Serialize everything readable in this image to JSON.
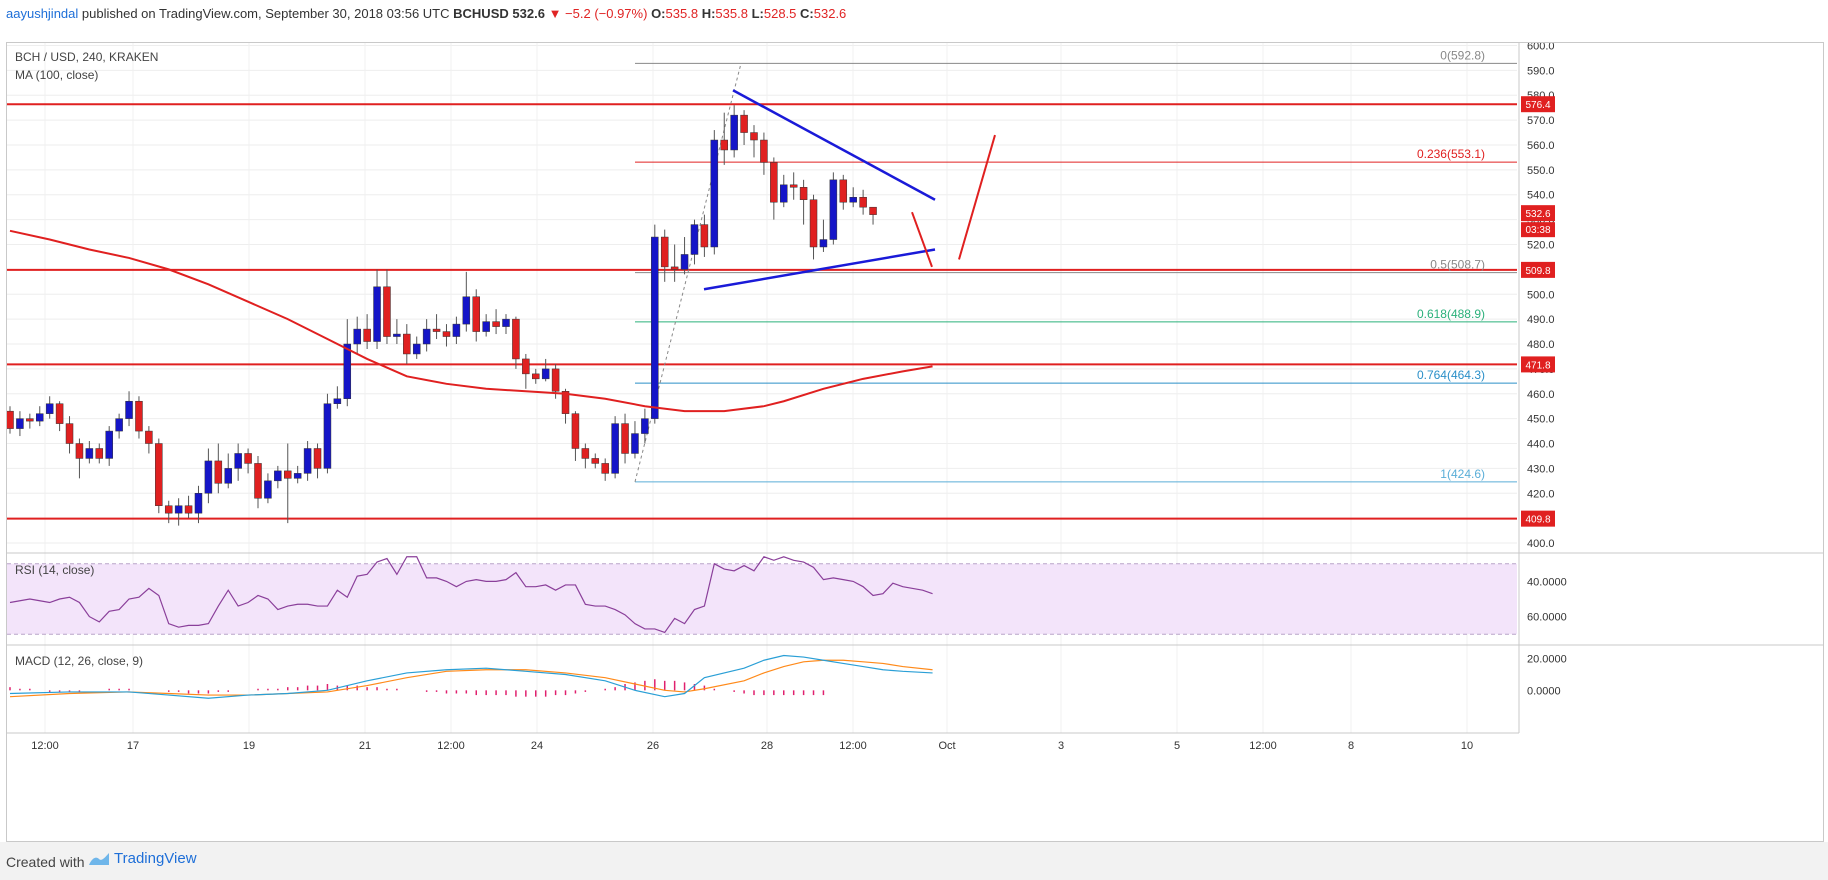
{
  "header": {
    "author": "aayushjindal",
    "published_text": "published on TradingView.com, September 30, 2018 03:56 UTC",
    "symbol": "BCHUSD",
    "last": "532.6",
    "change": "▼ −5.2 (−0.97%)",
    "open_label": "O:",
    "open": "535.8",
    "high_label": "H:",
    "high": "535.8",
    "low_label": "L:",
    "low": "528.5",
    "close_label": "C:",
    "close": "532.6"
  },
  "footer": {
    "created_with": "Created with",
    "brand": "TradingView"
  },
  "colors": {
    "up": "#1515c8",
    "down": "#e02020",
    "ma": "#e02020",
    "rsi": "#8a3f9a",
    "macd": "#2a9fd6",
    "signal": "#ff8a1a",
    "hist": "#e0206e",
    "level": "#e02020",
    "trend": "#1a1ad8"
  },
  "chart_data": {
    "type": "candlestick",
    "title": "BCH / USD, 240, KRAKEN",
    "indicator_label": "MA (100, close)",
    "ylim": [
      398,
      601
    ],
    "yticks": [
      "400.0",
      "410.0",
      "420.0",
      "430.0",
      "440.0",
      "450.0",
      "460.0",
      "470.0",
      "480.0",
      "490.0",
      "500.0",
      "510.0",
      "520.0",
      "530.0",
      "540.0",
      "550.0",
      "560.0",
      "570.0",
      "580.0",
      "590.0",
      "600.0"
    ],
    "xticks": [
      "12:00",
      "17",
      "12:00",
      "19",
      "21",
      "12:00",
      "24",
      "26",
      "28",
      "12:00",
      "Oct",
      "3",
      "5",
      "12:00",
      "8",
      "10"
    ],
    "last_price_label": "532.6",
    "countdown_label": "03:38",
    "candles": [
      [
        453,
        446,
        455,
        444
      ],
      [
        446,
        450,
        453,
        443
      ],
      [
        450,
        449,
        452,
        446
      ],
      [
        449,
        452,
        455,
        447
      ],
      [
        452,
        456,
        459,
        450
      ],
      [
        456,
        448,
        457,
        445
      ],
      [
        448,
        440,
        451,
        436
      ],
      [
        440,
        434,
        442,
        426
      ],
      [
        434,
        438,
        441,
        432
      ],
      [
        438,
        434,
        440,
        432
      ],
      [
        434,
        445,
        447,
        431
      ],
      [
        445,
        450,
        452,
        442
      ],
      [
        450,
        457,
        461,
        447
      ],
      [
        457,
        445,
        459,
        442
      ],
      [
        445,
        440,
        447,
        436
      ],
      [
        440,
        415,
        442,
        412
      ],
      [
        415,
        412,
        417,
        408
      ],
      [
        412,
        415,
        418,
        407
      ],
      [
        415,
        412,
        419,
        410
      ],
      [
        412,
        420,
        423,
        408
      ],
      [
        420,
        433,
        438,
        416
      ],
      [
        433,
        424,
        440,
        420
      ],
      [
        424,
        430,
        436,
        422
      ],
      [
        430,
        436,
        440,
        425
      ],
      [
        436,
        432,
        438,
        428
      ],
      [
        432,
        418,
        435,
        414
      ],
      [
        418,
        425,
        428,
        416
      ],
      [
        425,
        429,
        431,
        422
      ],
      [
        429,
        426,
        440,
        408
      ],
      [
        426,
        428,
        431,
        424
      ],
      [
        428,
        438,
        441,
        425
      ],
      [
        438,
        430,
        440,
        426
      ],
      [
        430,
        456,
        460,
        428
      ],
      [
        456,
        458,
        463,
        454
      ],
      [
        458,
        480,
        490,
        455
      ],
      [
        480,
        486,
        491,
        476
      ],
      [
        486,
        481,
        492,
        478
      ],
      [
        481,
        503,
        510,
        478
      ],
      [
        503,
        483,
        510,
        480
      ],
      [
        483,
        484,
        490,
        480
      ],
      [
        484,
        476,
        488,
        472
      ],
      [
        476,
        480,
        483,
        474
      ],
      [
        480,
        486,
        490,
        477
      ],
      [
        486,
        485,
        492,
        482
      ],
      [
        485,
        483,
        488,
        479
      ],
      [
        483,
        488,
        491,
        480
      ],
      [
        488,
        499,
        509,
        485
      ],
      [
        499,
        485,
        502,
        481
      ],
      [
        485,
        489,
        492,
        483
      ],
      [
        489,
        487,
        494,
        484
      ],
      [
        487,
        490,
        492,
        484
      ],
      [
        490,
        474,
        491,
        470
      ],
      [
        474,
        468,
        476,
        462
      ],
      [
        468,
        466,
        470,
        464
      ],
      [
        466,
        470,
        474,
        465
      ],
      [
        470,
        461,
        472,
        458
      ],
      [
        461,
        452,
        462,
        448
      ],
      [
        452,
        438,
        453,
        433
      ],
      [
        438,
        434,
        440,
        430
      ],
      [
        434,
        432,
        436,
        430
      ],
      [
        432,
        428,
        434,
        425
      ],
      [
        428,
        448,
        451,
        426
      ],
      [
        448,
        436,
        452,
        432
      ],
      [
        436,
        444,
        449,
        434
      ],
      [
        444,
        450,
        454,
        440
      ],
      [
        450,
        523,
        528,
        448
      ],
      [
        523,
        511,
        526,
        505
      ],
      [
        511,
        510,
        520,
        505
      ],
      [
        510,
        516,
        523,
        508
      ],
      [
        516,
        528,
        530,
        512
      ],
      [
        528,
        519,
        532,
        515
      ],
      [
        519,
        562,
        566,
        516
      ],
      [
        562,
        558,
        573,
        552
      ],
      [
        558,
        572,
        576,
        555
      ],
      [
        572,
        565,
        574,
        560
      ],
      [
        565,
        562,
        568,
        555
      ],
      [
        562,
        553,
        565,
        548
      ],
      [
        553,
        537,
        555,
        530
      ],
      [
        537,
        544,
        548,
        535
      ],
      [
        544,
        543,
        549,
        538
      ],
      [
        543,
        538,
        546,
        528
      ],
      [
        538,
        519,
        540,
        514
      ],
      [
        519,
        522,
        530,
        517
      ],
      [
        522,
        546,
        549,
        520
      ],
      [
        546,
        537,
        548,
        534
      ],
      [
        537,
        539,
        543,
        535
      ],
      [
        539,
        535,
        542,
        532
      ],
      [
        535,
        532,
        535,
        528
      ]
    ],
    "ma100": [
      [
        0,
        525.5
      ],
      [
        4,
        522
      ],
      [
        8,
        518
      ],
      [
        12,
        514.6
      ],
      [
        16,
        510
      ],
      [
        20,
        504
      ],
      [
        24,
        497
      ],
      [
        28,
        490
      ],
      [
        32,
        482
      ],
      [
        36,
        474
      ],
      [
        40,
        467
      ],
      [
        44,
        464
      ],
      [
        48,
        462
      ],
      [
        52,
        461
      ],
      [
        56,
        460
      ],
      [
        60,
        458
      ],
      [
        64,
        455
      ],
      [
        68,
        453
      ],
      [
        72,
        453
      ],
      [
        76,
        455
      ],
      [
        78,
        457
      ],
      [
        82,
        462
      ],
      [
        86,
        466
      ],
      [
        90,
        469
      ],
      [
        93,
        471
      ]
    ],
    "levels": [
      {
        "name": "resistance",
        "value": 576.4,
        "label": "576.4"
      },
      {
        "name": "support-upper",
        "value": 509.8,
        "label": "509.8"
      },
      {
        "name": "support-mid",
        "value": 471.8,
        "label": "471.8"
      },
      {
        "name": "support-lower",
        "value": 409.8,
        "label": "409.8"
      }
    ],
    "fib": [
      {
        "ratio": "0",
        "value": 592.8,
        "label": "0(592.8)",
        "color": "#888888"
      },
      {
        "ratio": "0.236",
        "value": 553.1,
        "label": "0.236(553.1)",
        "color": "#e02020"
      },
      {
        "ratio": "0.5",
        "value": 508.7,
        "label": "0.5(508.7)",
        "color": "#888888"
      },
      {
        "ratio": "0.618",
        "value": 488.9,
        "label": "0.618(488.9)",
        "color": "#2ab07a"
      },
      {
        "ratio": "0.764",
        "value": 464.3,
        "label": "0.764(464.3)",
        "color": "#2a8fc8"
      },
      {
        "ratio": "1",
        "value": 424.6,
        "label": "1(424.6)",
        "color": "#5aaed8"
      }
    ],
    "rsi": {
      "label": "RSI (14, close)",
      "ticks": [
        "40.0000",
        "60.0000"
      ],
      "values": [
        48,
        49,
        50,
        49,
        48,
        50,
        51,
        48,
        40,
        37,
        43,
        44,
        50,
        51,
        56,
        52,
        36,
        34,
        35,
        35,
        36,
        46,
        55,
        46,
        48,
        52,
        50,
        44,
        46,
        47,
        47,
        46,
        46,
        55,
        51,
        63,
        64,
        71,
        73,
        64,
        74,
        74,
        62,
        62,
        60,
        57,
        60,
        61,
        60,
        60,
        61,
        65,
        57,
        57,
        58,
        55,
        58,
        58,
        47,
        46,
        46,
        44,
        41,
        36,
        33,
        33,
        31,
        39,
        36,
        44,
        46,
        70,
        67,
        66,
        69,
        66,
        74,
        72,
        74,
        72,
        71,
        68,
        61,
        62,
        61,
        60,
        57,
        52,
        53,
        59,
        57,
        56,
        55,
        53
      ]
    },
    "macd": {
      "label": "MACD (12, 26, close, 9)",
      "ticks": [
        "20.0000",
        "0.0000"
      ],
      "macd": [
        [
          0,
          -2
        ],
        [
          6,
          -1
        ],
        [
          12,
          -1
        ],
        [
          16,
          -3
        ],
        [
          20,
          -5
        ],
        [
          24,
          -3
        ],
        [
          28,
          -2
        ],
        [
          32,
          0
        ],
        [
          36,
          6
        ],
        [
          40,
          11
        ],
        [
          44,
          13
        ],
        [
          48,
          14
        ],
        [
          52,
          12
        ],
        [
          56,
          10
        ],
        [
          60,
          6
        ],
        [
          63,
          0
        ],
        [
          66,
          -4
        ],
        [
          68,
          -2
        ],
        [
          70,
          8
        ],
        [
          74,
          14
        ],
        [
          76,
          19
        ],
        [
          78,
          22
        ],
        [
          80,
          21
        ],
        [
          82,
          19
        ],
        [
          84,
          17
        ],
        [
          86,
          15
        ],
        [
          88,
          13
        ],
        [
          90,
          12
        ],
        [
          93,
          11
        ]
      ],
      "signal": [
        [
          0,
          -4
        ],
        [
          6,
          -2
        ],
        [
          12,
          -1
        ],
        [
          16,
          -2
        ],
        [
          20,
          -3
        ],
        [
          24,
          -3
        ],
        [
          28,
          -2
        ],
        [
          32,
          -1
        ],
        [
          36,
          3
        ],
        [
          40,
          8
        ],
        [
          44,
          12
        ],
        [
          48,
          13
        ],
        [
          52,
          13
        ],
        [
          56,
          11
        ],
        [
          60,
          8
        ],
        [
          63,
          4
        ],
        [
          66,
          0
        ],
        [
          68,
          -1
        ],
        [
          70,
          1
        ],
        [
          74,
          6
        ],
        [
          76,
          11
        ],
        [
          78,
          15
        ],
        [
          80,
          18
        ],
        [
          82,
          19
        ],
        [
          84,
          19
        ],
        [
          86,
          18
        ],
        [
          88,
          17
        ],
        [
          90,
          15
        ],
        [
          93,
          13
        ]
      ],
      "hist": [
        2,
        1,
        1,
        0,
        -1,
        -1,
        -1,
        -1,
        0,
        0,
        1,
        1,
        1,
        0,
        0,
        0,
        -1,
        -1,
        -2,
        -2,
        -2,
        -1,
        -1,
        0,
        0,
        1,
        1,
        1,
        2,
        2,
        3,
        3,
        4,
        3,
        3,
        3,
        2,
        2,
        1,
        1,
        0,
        0,
        -1,
        -1,
        -2,
        -2,
        -2,
        -3,
        -3,
        -3,
        -3,
        -4,
        -4,
        -4,
        -4,
        -3,
        -3,
        -2,
        -1,
        0,
        1,
        2,
        4,
        5,
        6,
        7,
        6,
        6,
        5,
        4,
        3,
        1,
        0,
        -1,
        -2,
        -3,
        -3,
        -3,
        -3,
        -3,
        -3,
        -3,
        -3
      ]
    }
  }
}
